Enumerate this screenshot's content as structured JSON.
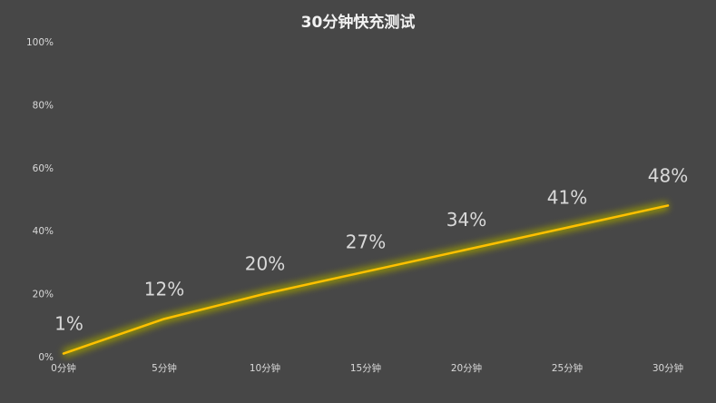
{
  "chart_data": {
    "type": "line",
    "title": "30分钟快充测试",
    "xlabel": "",
    "ylabel": "",
    "categories": [
      "0分钟",
      "5分钟",
      "10分钟",
      "15分钟",
      "20分钟",
      "25分钟",
      "30分钟"
    ],
    "series": [
      {
        "values": [
          1,
          12,
          20,
          27,
          34,
          41,
          48
        ],
        "labels": [
          "1%",
          "12%",
          "20%",
          "27%",
          "34%",
          "41%",
          "48%"
        ],
        "color": "#ffc000"
      }
    ],
    "ylim": [
      0,
      100
    ],
    "yticks": [
      "0%",
      "20%",
      "40%",
      "60%",
      "80%",
      "100%"
    ],
    "ytick_values": [
      0,
      20,
      40,
      60,
      80,
      100
    ],
    "grid": false,
    "legend": "none",
    "background": "#474747",
    "text_color": "#d9d9d9"
  }
}
